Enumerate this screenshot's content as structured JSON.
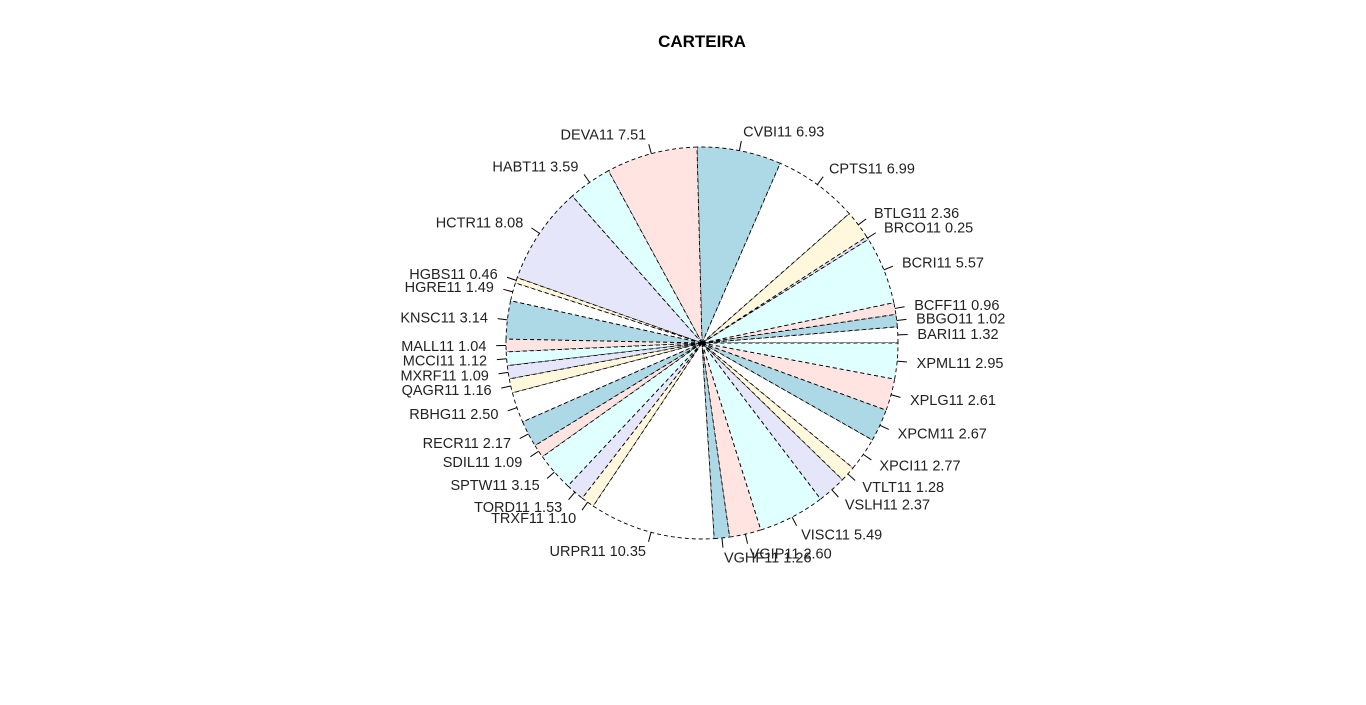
{
  "chart_data": {
    "type": "pie",
    "title": "CARTEIRA",
    "direction": "counterclockwise",
    "start_angle_deg": 0,
    "palette": [
      "#ffffff",
      "#add8e6",
      "#ffe4e1",
      "#e0ffff",
      "#e6e6fa",
      "#fff8dc"
    ],
    "slices": [
      {
        "name": "BARI11",
        "value_label": "1.32",
        "value": 1.32
      },
      {
        "name": "BBGO11",
        "value_label": "1.02",
        "value": 1.02
      },
      {
        "name": "BCFF11",
        "value_label": "0.96",
        "value": 0.96
      },
      {
        "name": "BCRI11",
        "value_label": "5.57",
        "value": 5.57
      },
      {
        "name": "BRCO11",
        "value_label": "0.25",
        "value": 0.25
      },
      {
        "name": "BTLG11",
        "value_label": "2.36",
        "value": 2.36
      },
      {
        "name": "CPTS11",
        "value_label": "6.99",
        "value": 6.99
      },
      {
        "name": "CVBI11",
        "value_label": "6.93",
        "value": 6.93
      },
      {
        "name": "DEVA11",
        "value_label": "7.51",
        "value": 7.51
      },
      {
        "name": "HABT11",
        "value_label": "3.59",
        "value": 3.59
      },
      {
        "name": "HCTR11",
        "value_label": "8.08",
        "value": 8.08
      },
      {
        "name": "HGBS11",
        "value_label": "0.46",
        "value": 0.46
      },
      {
        "name": "HGRE11",
        "value_label": "1.49",
        "value": 1.49
      },
      {
        "name": "KNSC11",
        "value_label": "3.14",
        "value": 3.14
      },
      {
        "name": "MALL11",
        "value_label": "1.04",
        "value": 1.04
      },
      {
        "name": "MCCI11",
        "value_label": "1.12",
        "value": 1.12
      },
      {
        "name": "MXRF11",
        "value_label": "1.09",
        "value": 1.09
      },
      {
        "name": "QAGR11",
        "value_label": "1.16",
        "value": 1.16
      },
      {
        "name": "RBHG11",
        "value_label": "2.50",
        "value": 2.5
      },
      {
        "name": "RECR11",
        "value_label": "2.17",
        "value": 2.17
      },
      {
        "name": "SDIL11",
        "value_label": "1.09",
        "value": 1.09
      },
      {
        "name": "SPTW11",
        "value_label": "3.15",
        "value": 3.15
      },
      {
        "name": "TORD11",
        "value_label": "1.53",
        "value": 1.53
      },
      {
        "name": "TRXF11",
        "value_label": "1.10",
        "value": 1.1
      },
      {
        "name": "URPR11",
        "value_label": "10.35",
        "value": 10.35
      },
      {
        "name": "VGHF11",
        "value_label": "1.26",
        "value": 1.26
      },
      {
        "name": "VGIP11",
        "value_label": "2.60",
        "value": 2.6
      },
      {
        "name": "VISC11",
        "value_label": "5.49",
        "value": 5.49
      },
      {
        "name": "VSLH11",
        "value_label": "2.37",
        "value": 2.37
      },
      {
        "name": "VTLT11",
        "value_label": "1.28",
        "value": 1.28
      },
      {
        "name": "XPCI11",
        "value_label": "2.77",
        "value": 2.77
      },
      {
        "name": "XPCM11",
        "value_label": "2.67",
        "value": 2.67
      },
      {
        "name": "XPLG11",
        "value_label": "2.61",
        "value": 2.61
      },
      {
        "name": "XPML11",
        "value_label": "2.95",
        "value": 2.95
      }
    ]
  }
}
